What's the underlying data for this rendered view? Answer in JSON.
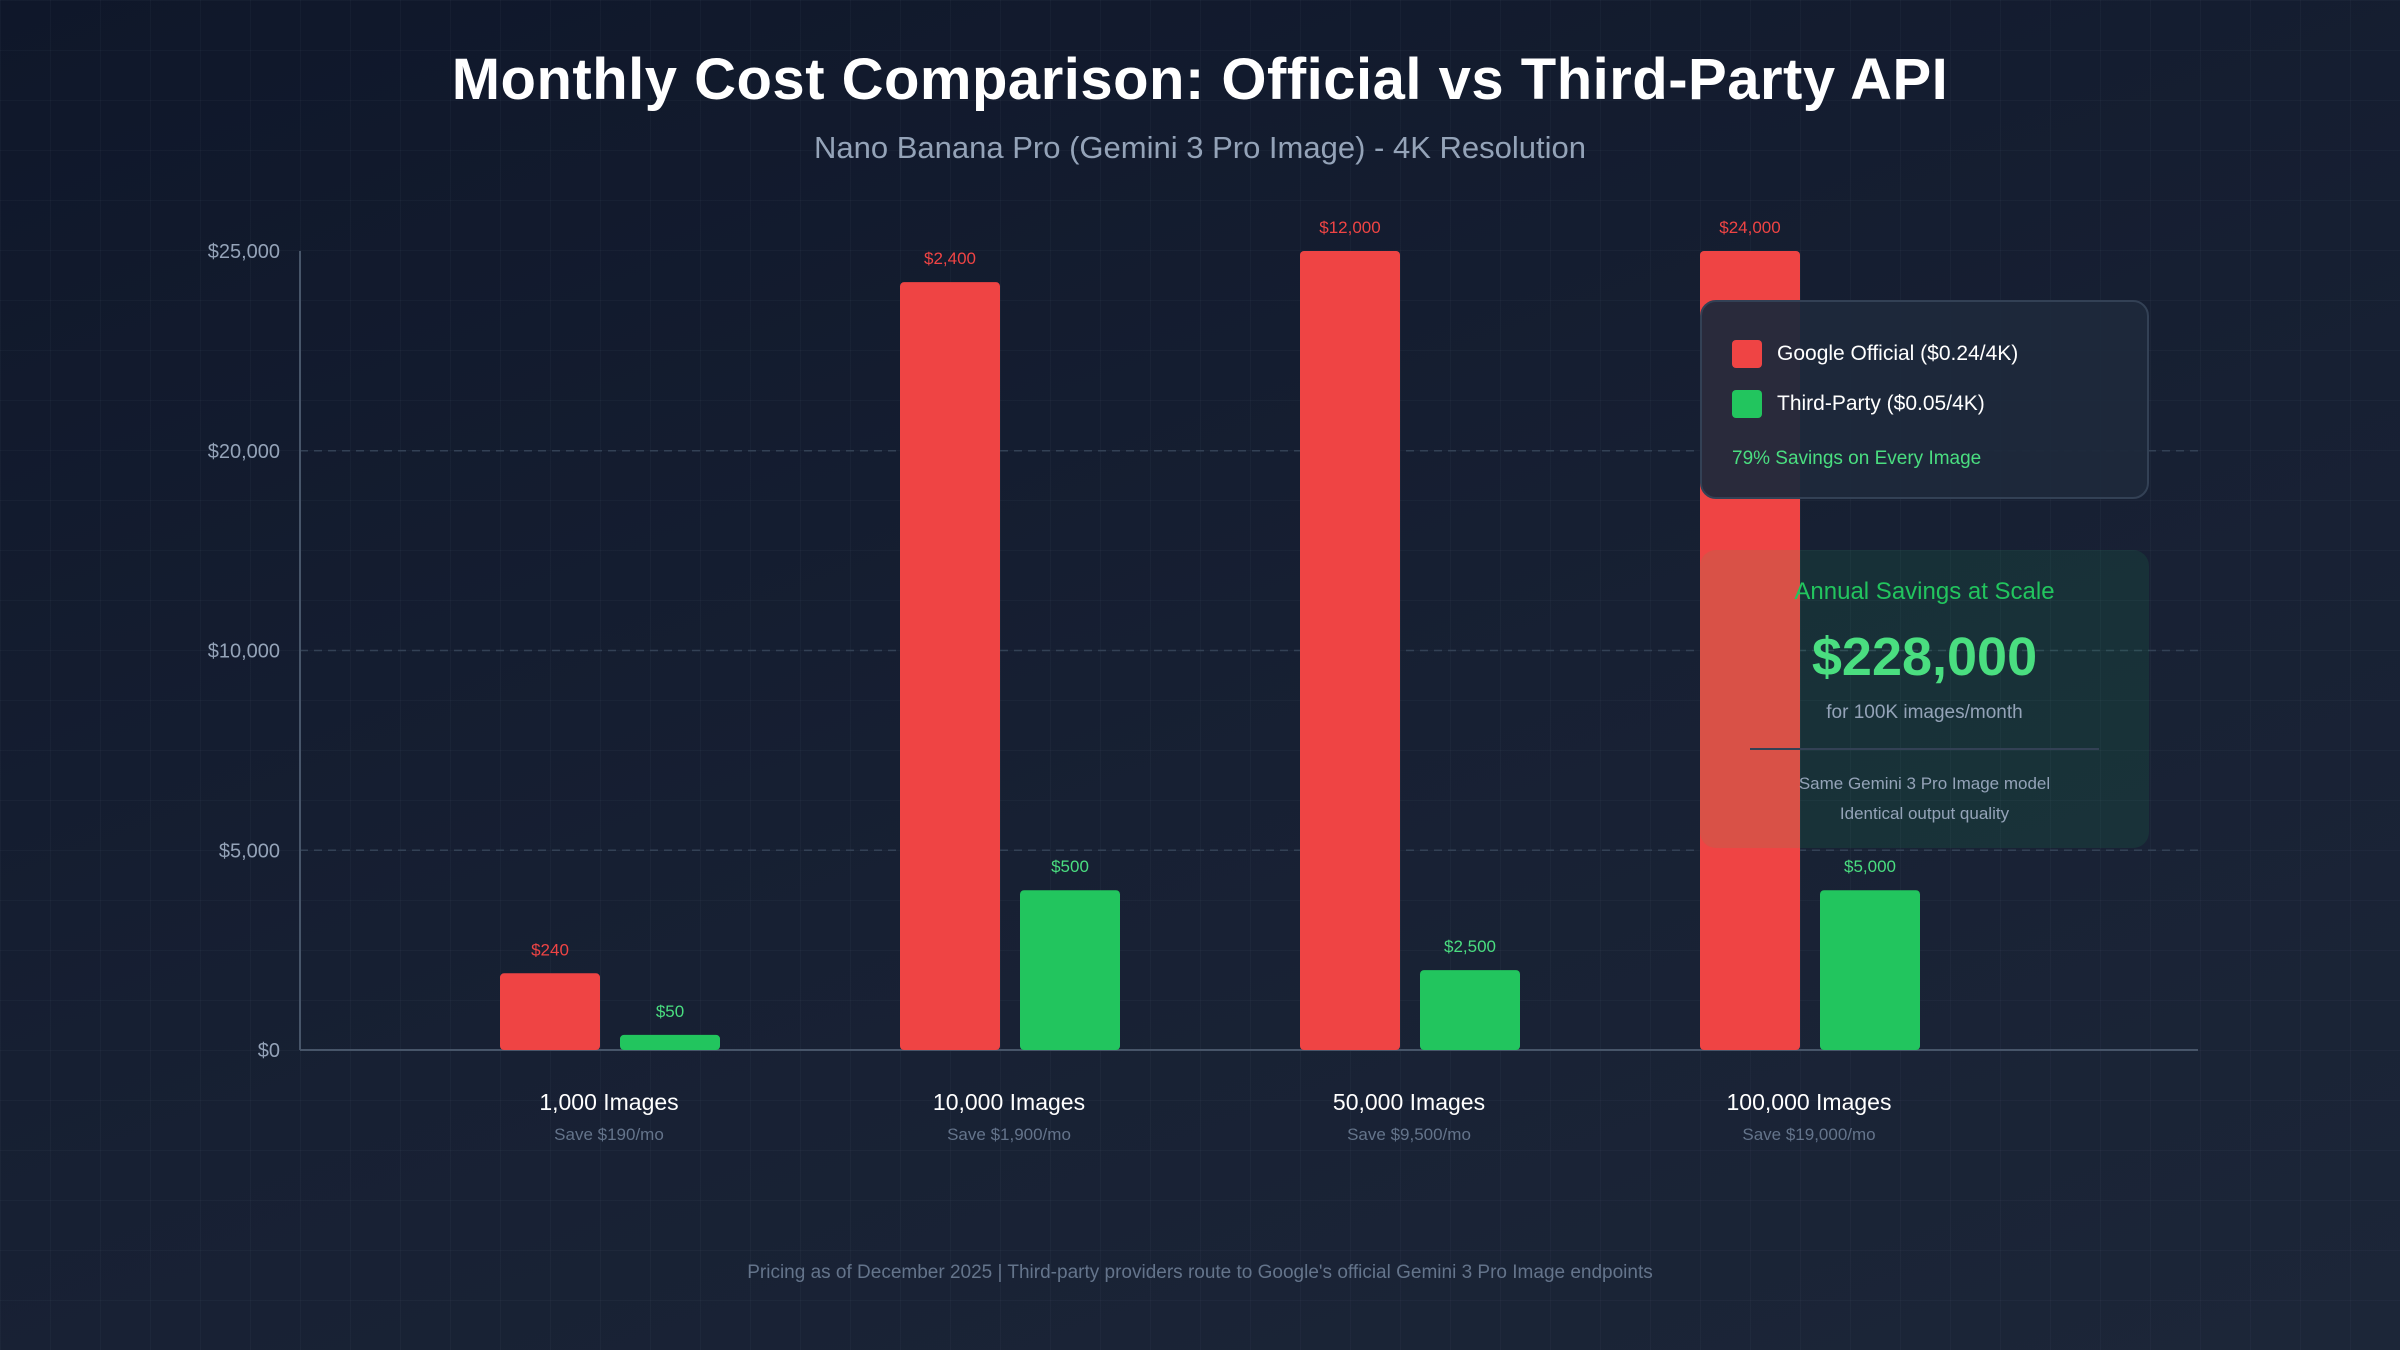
{
  "chart_data": {
    "type": "bar",
    "title": "Monthly Cost Comparison: Official vs Third-Party API",
    "subtitle": "Nano Banana Pro (Gemini 3 Pro Image) - 4K Resolution",
    "xlabel": "",
    "ylabel": "",
    "y_ticks": [
      "$0",
      "$5,000",
      "$10,000",
      "$20,000",
      "$25,000"
    ],
    "grid": "horizontal dashed",
    "legend_placement": "top-right",
    "categories": [
      "1,000 Images",
      "10,000 Images",
      "50,000 Images",
      "100,000 Images"
    ],
    "category_notes": [
      "Save $190/mo",
      "Save $1,900/mo",
      "Save $9,500/mo",
      "Save $19,000/mo"
    ],
    "series": [
      {
        "name": "Google Official ($0.24/4K)",
        "color": "#ef4444",
        "values": [
          240,
          2400,
          12000,
          24000
        ],
        "labels": [
          "$240",
          "$2,400",
          "$12,000",
          "$24,000"
        ],
        "plotted_level_fraction": [
          0.096,
          0.961,
          1.0,
          1.0
        ]
      },
      {
        "name": "Third-Party ($0.05/4K)",
        "color": "#22c55e",
        "values": [
          50,
          500,
          2500,
          5000
        ],
        "labels": [
          "$50",
          "$500",
          "$2,500",
          "$5,000"
        ],
        "plotted_level_fraction": [
          0.019,
          0.2,
          0.1,
          0.2
        ]
      }
    ]
  },
  "legend": {
    "savings_note": "79% Savings on Every Image"
  },
  "annual": {
    "title": "Annual Savings at Scale",
    "amount": "$228,000",
    "caption": "for 100K images/month",
    "note1": "Same Gemini 3 Pro Image model",
    "note2": "Identical output quality"
  },
  "footer": "Pricing as of December 2025 | Third-party providers route to Google's official Gemini 3 Pro Image endpoints"
}
